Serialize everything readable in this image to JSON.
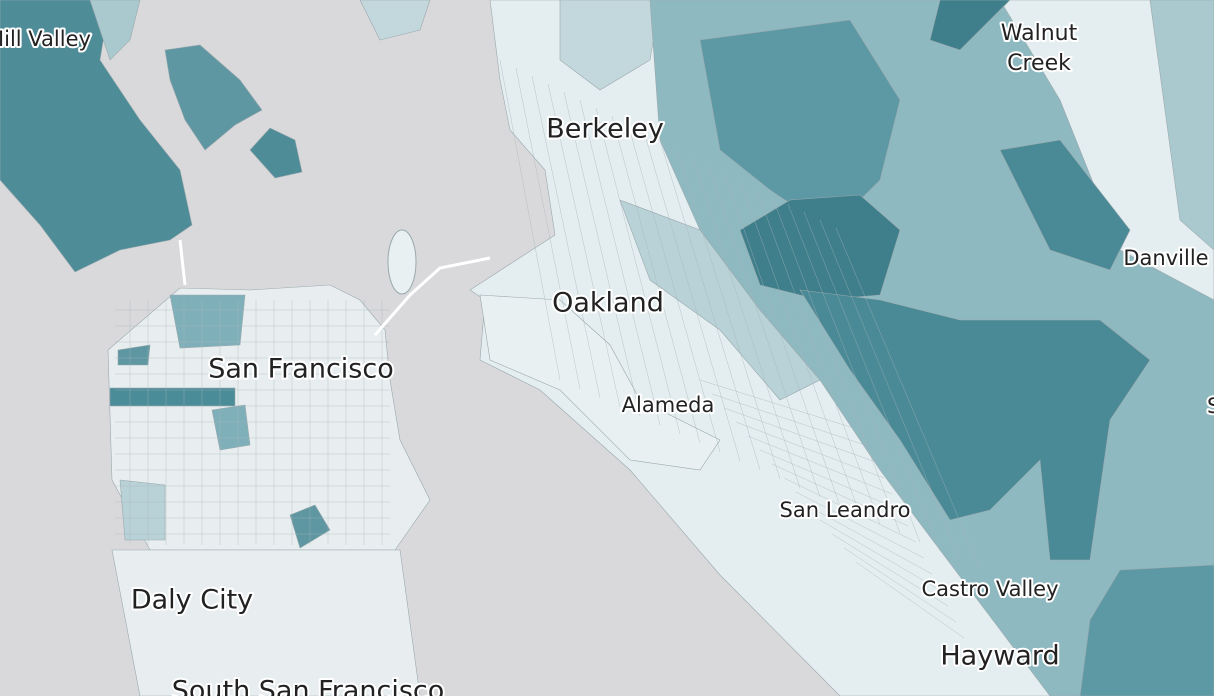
{
  "map": {
    "labels": [
      {
        "text": "Mill Valley"
      },
      {
        "text": "Walnut"
      },
      {
        "text": "Creek"
      },
      {
        "text": "Berkeley"
      },
      {
        "text": "Danville"
      },
      {
        "text": "Oakland"
      },
      {
        "text": "San Francisco"
      },
      {
        "text": "S"
      },
      {
        "text": "Alameda"
      },
      {
        "text": "San Leandro"
      },
      {
        "text": "Castro Valley"
      },
      {
        "text": "Daly City"
      },
      {
        "text": "Hayward"
      },
      {
        "text": "South San Francisco"
      }
    ]
  }
}
